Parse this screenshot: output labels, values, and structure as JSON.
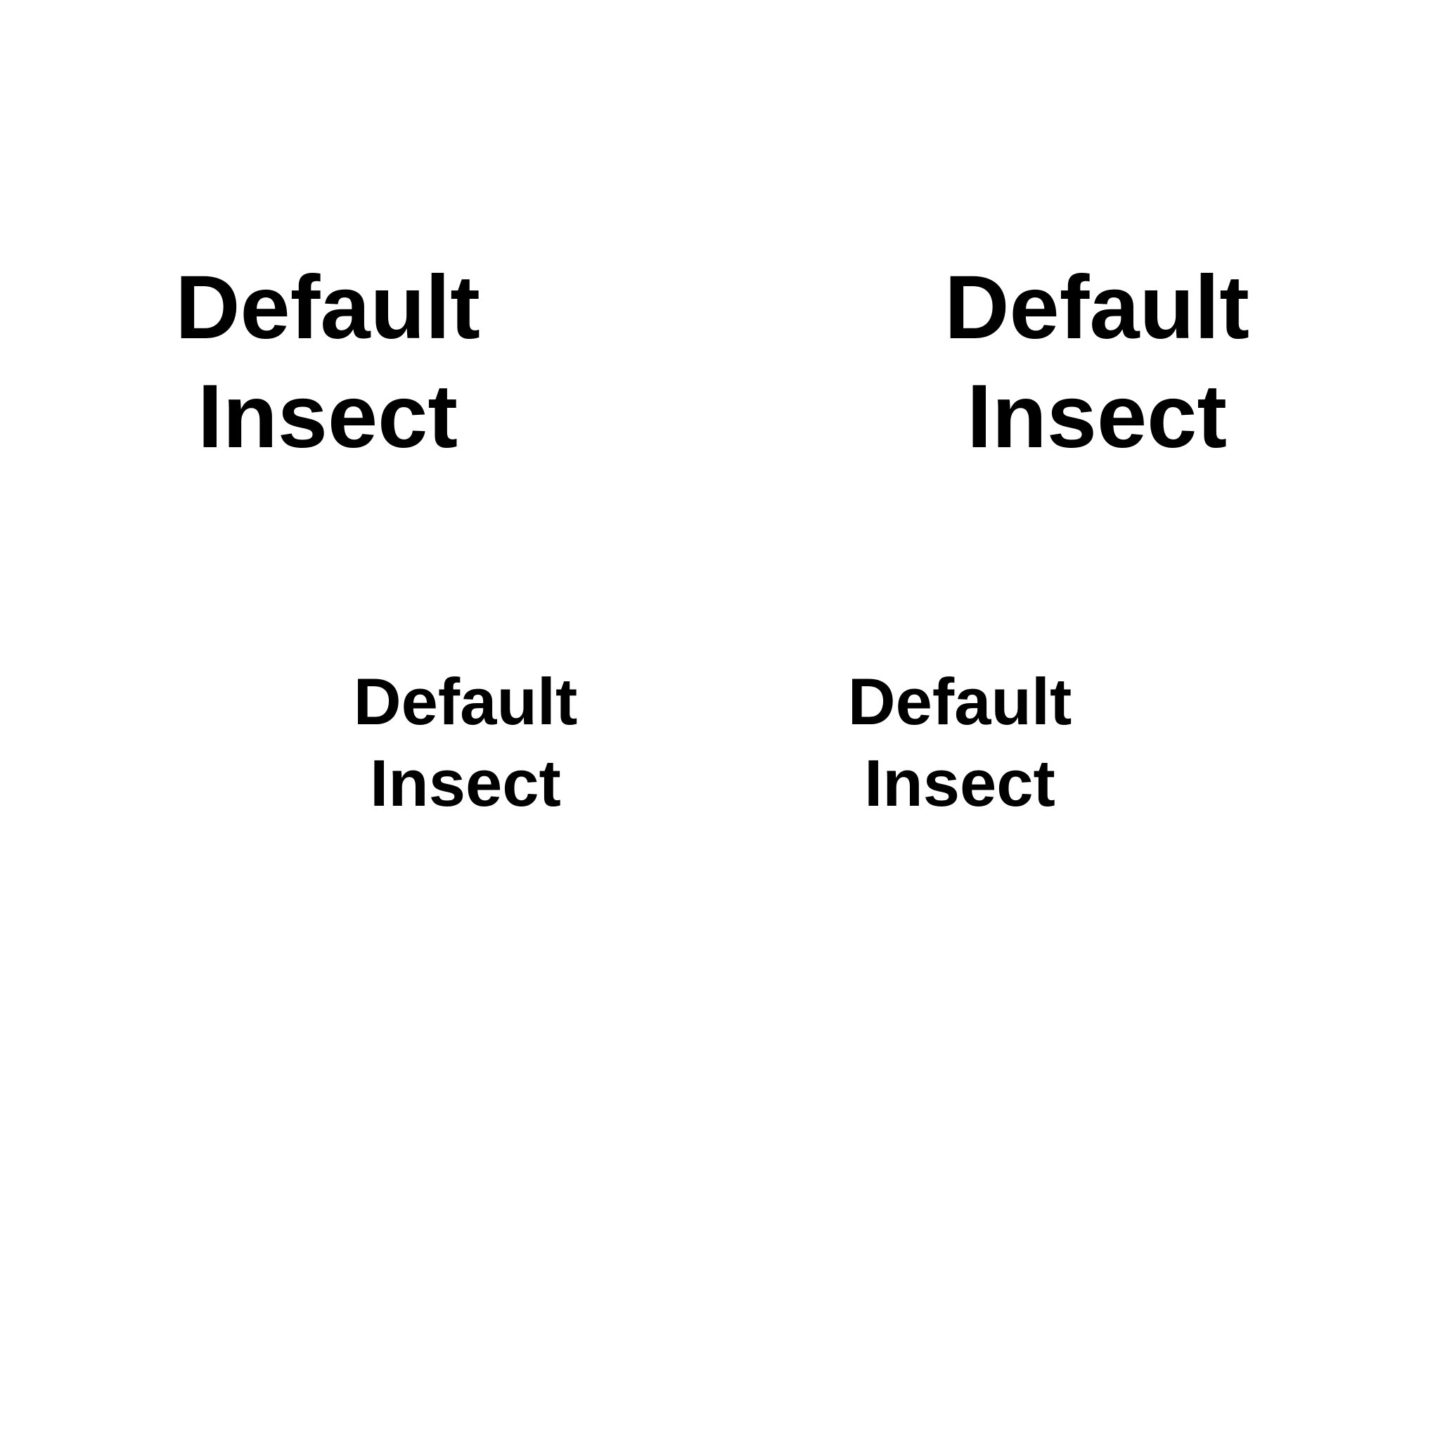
{
  "labels": [
    {
      "line1": "Default",
      "line2": "Insect"
    },
    {
      "line1": "Default",
      "line2": "Insect"
    },
    {
      "line1": "Default",
      "line2": "Insect"
    },
    {
      "line1": "Default",
      "line2": "Insect"
    }
  ],
  "colors": {
    "background": "#ffffff",
    "text": "#000000"
  }
}
